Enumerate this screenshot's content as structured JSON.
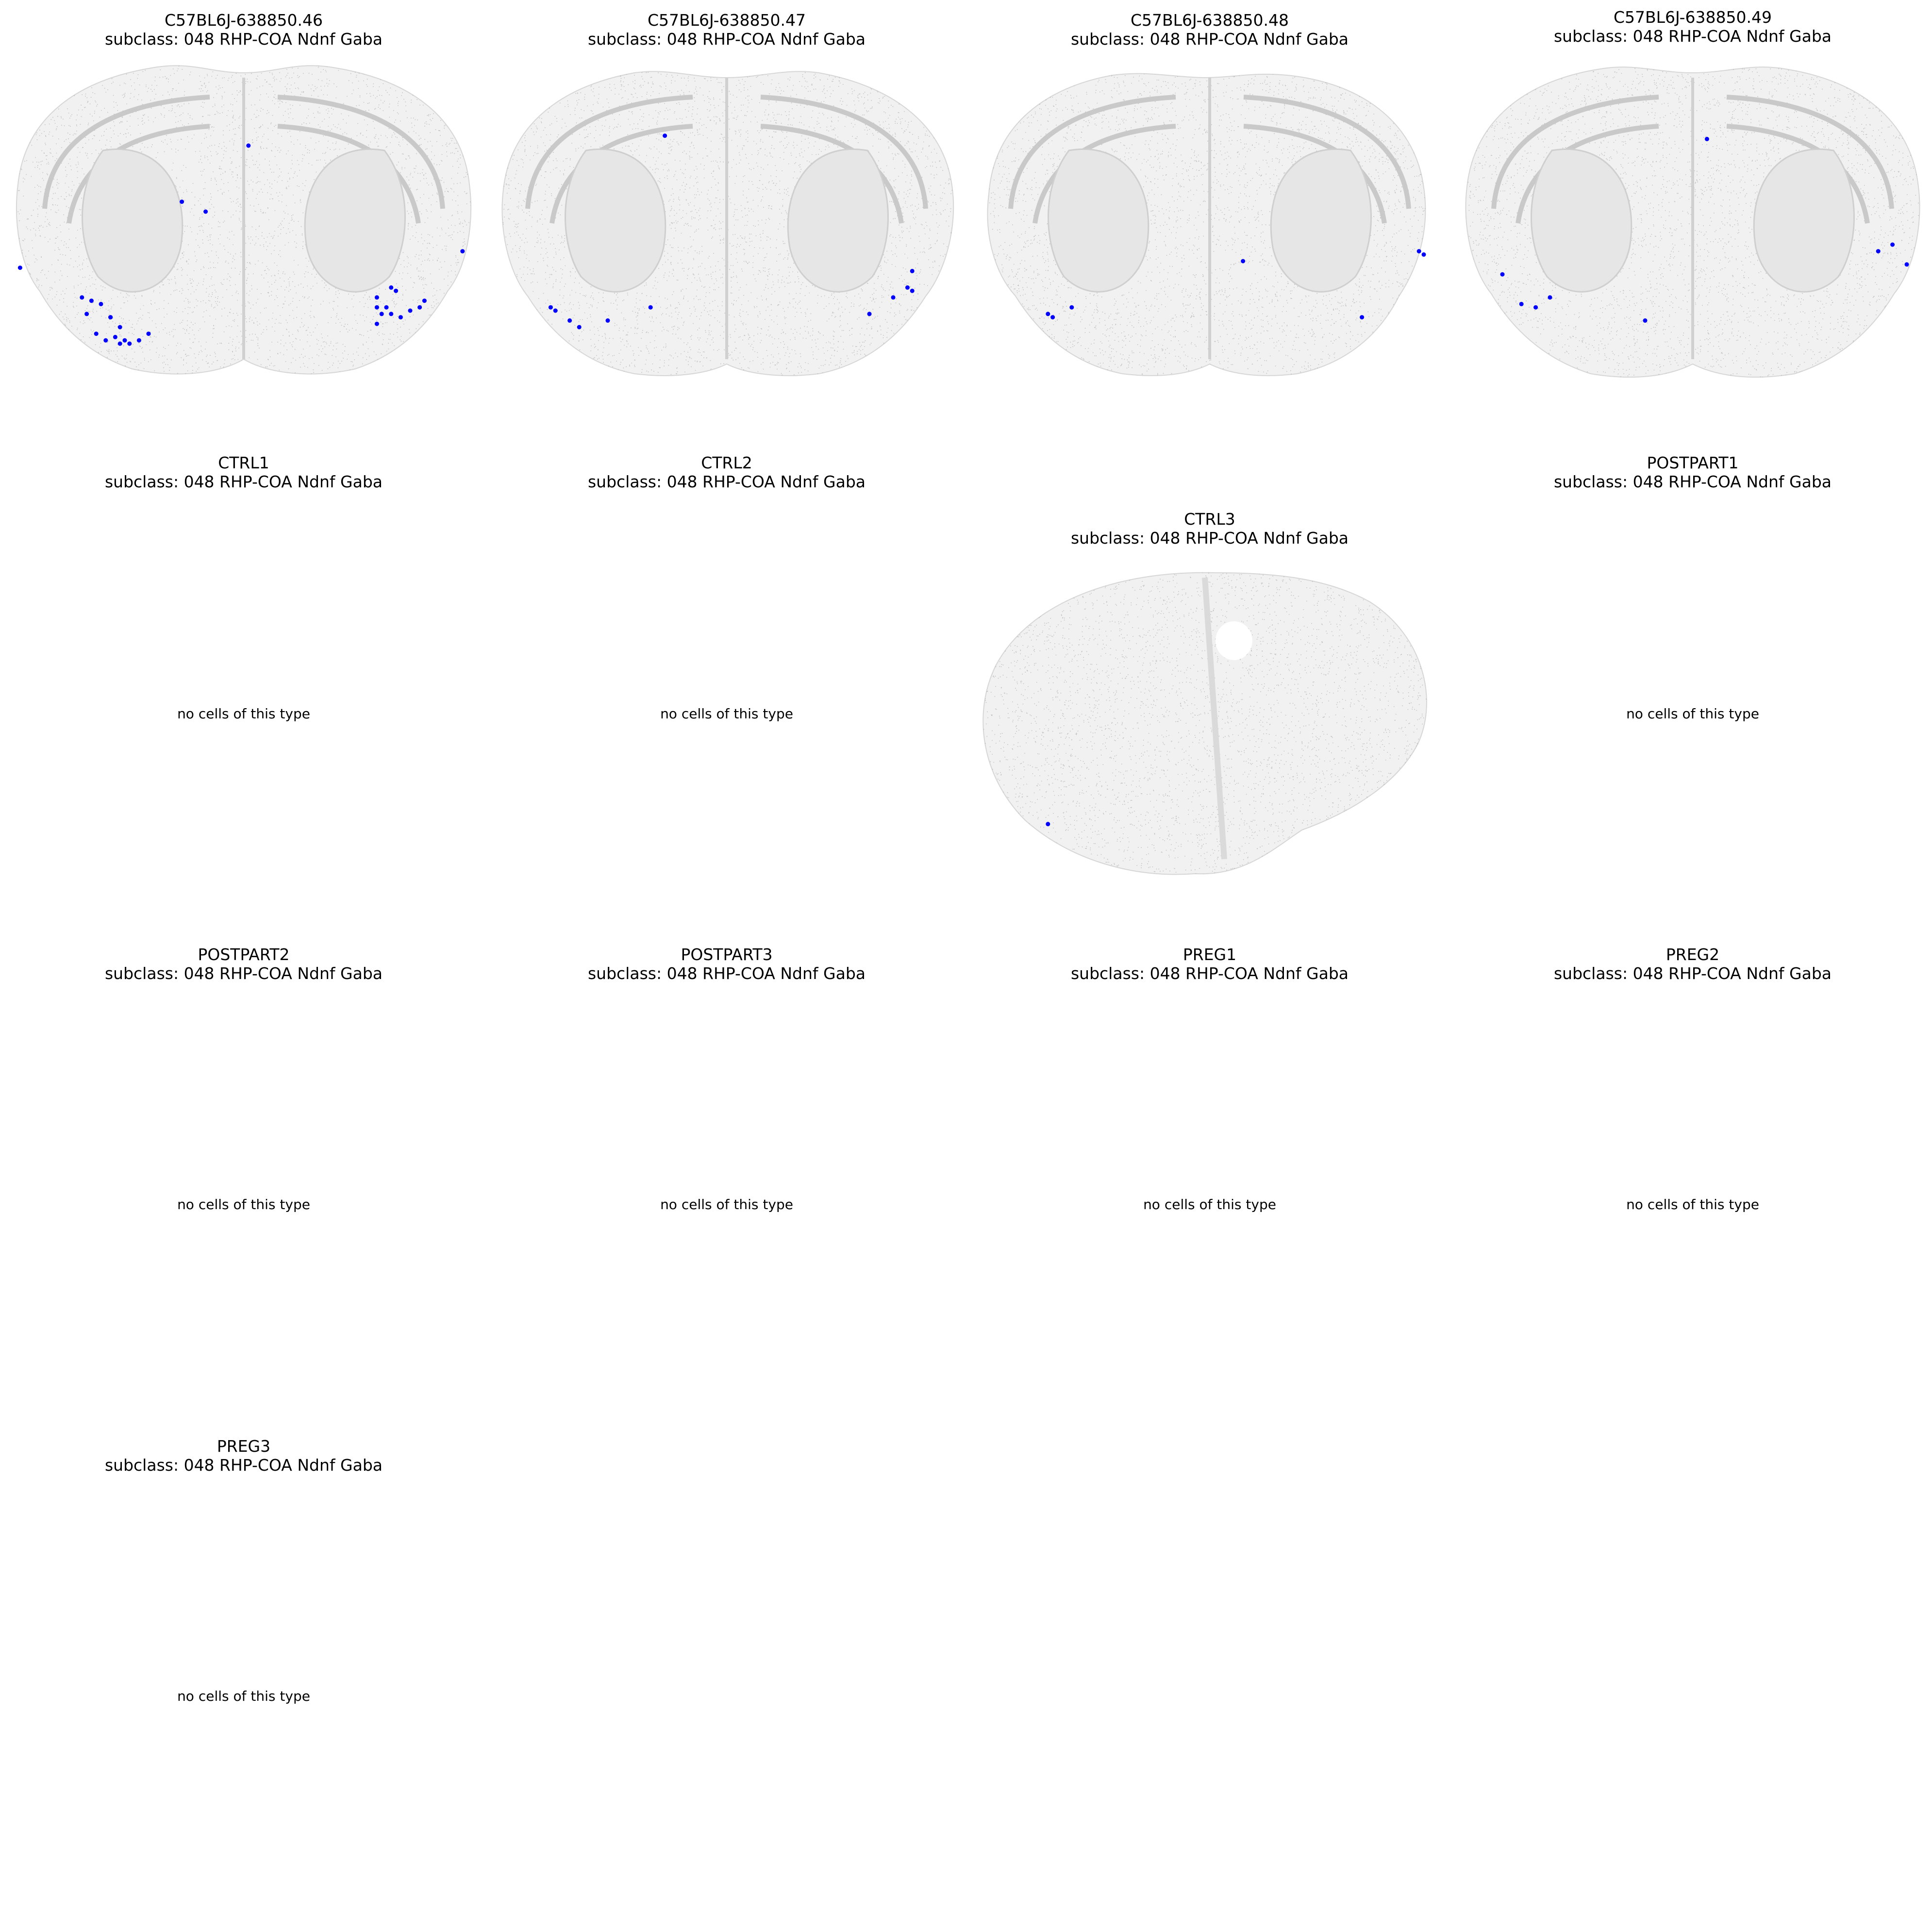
{
  "figure": {
    "subclass_label": "subclass: 048 RHP-COA Ndnf Gaba",
    "empty_message": "no cells of this type",
    "highlight_color": "#0000ff",
    "background_cell_color": "#9a9a9a"
  },
  "chart_data": {
    "type": "scatter",
    "description_free": true,
    "panels": [
      {
        "sample": "C57BL6J-638850.46",
        "subtitle": "subclass: 048 RHP-COA Ndnf Gaba",
        "has_cells": true,
        "highlighted_points": [
          [
            0.03,
            0.62
          ],
          [
            0.18,
            0.72
          ],
          [
            0.2,
            0.73
          ],
          [
            0.22,
            0.77
          ],
          [
            0.22,
            0.77
          ],
          [
            0.17,
            0.76
          ],
          [
            0.19,
            0.82
          ],
          [
            0.21,
            0.84
          ],
          [
            0.23,
            0.83
          ],
          [
            0.24,
            0.85
          ],
          [
            0.25,
            0.84
          ],
          [
            0.26,
            0.85
          ],
          [
            0.28,
            0.84
          ],
          [
            0.3,
            0.82
          ],
          [
            0.24,
            0.8
          ],
          [
            0.37,
            0.42
          ],
          [
            0.42,
            0.45
          ],
          [
            0.51,
            0.25
          ],
          [
            0.81,
            0.68
          ],
          [
            0.82,
            0.69
          ],
          [
            0.8,
            0.74
          ],
          [
            0.81,
            0.76
          ],
          [
            0.83,
            0.77
          ],
          [
            0.85,
            0.75
          ],
          [
            0.87,
            0.74
          ],
          [
            0.88,
            0.72
          ],
          [
            0.78,
            0.71
          ],
          [
            0.78,
            0.74
          ],
          [
            0.79,
            0.76
          ],
          [
            0.78,
            0.79
          ],
          [
            0.96,
            0.57
          ],
          [
            0.16,
            0.71
          ]
        ]
      },
      {
        "sample": "C57BL6J-638850.47",
        "subtitle": "subclass: 048 RHP-COA Ndnf Gaba",
        "has_cells": true,
        "highlighted_points": [
          [
            0.37,
            0.22
          ],
          [
            0.13,
            0.74
          ],
          [
            0.14,
            0.75
          ],
          [
            0.17,
            0.78
          ],
          [
            0.19,
            0.8
          ],
          [
            0.25,
            0.78
          ],
          [
            0.34,
            0.74
          ],
          [
            0.85,
            0.71
          ],
          [
            0.88,
            0.68
          ],
          [
            0.89,
            0.69
          ],
          [
            0.89,
            0.63
          ],
          [
            0.8,
            0.76
          ]
        ]
      },
      {
        "sample": "C57BL6J-638850.48",
        "subtitle": "subclass: 048 RHP-COA Ndnf Gaba",
        "has_cells": true,
        "highlighted_points": [
          [
            0.16,
            0.76
          ],
          [
            0.17,
            0.77
          ],
          [
            0.21,
            0.74
          ],
          [
            0.57,
            0.6
          ],
          [
            0.82,
            0.77
          ],
          [
            0.94,
            0.57
          ],
          [
            0.95,
            0.58
          ]
        ]
      },
      {
        "sample": "C57BL6J-638850.49",
        "subtitle": "subclass: 048 RHP-COA Ndnf Gaba",
        "has_cells": true,
        "highlighted_points": [
          [
            0.53,
            0.23
          ],
          [
            0.1,
            0.64
          ],
          [
            0.14,
            0.73
          ],
          [
            0.17,
            0.74
          ],
          [
            0.2,
            0.71
          ],
          [
            0.4,
            0.78
          ],
          [
            0.89,
            0.57
          ],
          [
            0.92,
            0.55
          ],
          [
            0.95,
            0.61
          ]
        ]
      },
      {
        "sample": "CTRL1",
        "subtitle": "subclass: 048 RHP-COA Ndnf Gaba",
        "has_cells": false
      },
      {
        "sample": "CTRL2",
        "subtitle": "subclass: 048 RHP-COA Ndnf Gaba",
        "has_cells": false
      },
      {
        "sample": "CTRL3",
        "subtitle": "subclass: 048 RHP-COA Ndnf Gaba",
        "has_cells": true,
        "highlighted_points": [
          [
            0.16,
            0.83
          ]
        ]
      },
      {
        "sample": "POSTPART1",
        "subtitle": "subclass: 048 RHP-COA Ndnf Gaba",
        "has_cells": false
      },
      {
        "sample": "POSTPART2",
        "subtitle": "subclass: 048 RHP-COA Ndnf Gaba",
        "has_cells": false
      },
      {
        "sample": "POSTPART3",
        "subtitle": "subclass: 048 RHP-COA Ndnf Gaba",
        "has_cells": false
      },
      {
        "sample": "PREG1",
        "subtitle": "subclass: 048 RHP-COA Ndnf Gaba",
        "has_cells": false
      },
      {
        "sample": "PREG2",
        "subtitle": "subclass: 048 RHP-COA Ndnf Gaba",
        "has_cells": false
      },
      {
        "sample": "PREG3",
        "subtitle": "subclass: 048 RHP-COA Ndnf Gaba",
        "has_cells": false
      }
    ]
  }
}
